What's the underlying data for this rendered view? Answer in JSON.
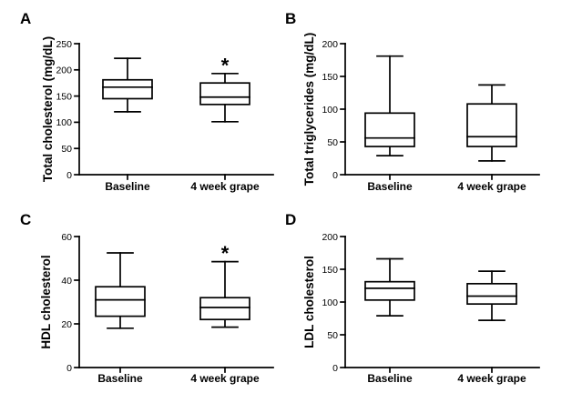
{
  "chart_data": [
    {
      "type": "boxplot",
      "panel_label": "A",
      "ylabel": "Total cholesterol (mg/dL)",
      "ylim": [
        0,
        250
      ],
      "yticks": [
        0,
        50,
        100,
        150,
        200,
        250
      ],
      "categories": [
        "Baseline",
        "4 week grape"
      ],
      "boxes": [
        {
          "min": 120,
          "q1": 145,
          "median": 167,
          "q3": 181,
          "max": 222,
          "annotation": ""
        },
        {
          "min": 101,
          "q1": 134,
          "median": 148,
          "q3": 175,
          "max": 193,
          "annotation": "*"
        }
      ]
    },
    {
      "type": "boxplot",
      "panel_label": "B",
      "ylabel": "Total triglycerides (mg/dL)",
      "ylim": [
        0,
        200
      ],
      "yticks": [
        0,
        50,
        100,
        150,
        200
      ],
      "categories": [
        "Baseline",
        "4 week grape"
      ],
      "boxes": [
        {
          "min": 29,
          "q1": 43,
          "median": 56,
          "q3": 94,
          "max": 181,
          "annotation": ""
        },
        {
          "min": 21,
          "q1": 43,
          "median": 58,
          "q3": 108,
          "max": 137,
          "annotation": ""
        }
      ]
    },
    {
      "type": "boxplot",
      "panel_label": "C",
      "ylabel": "HDL cholesterol",
      "ylim": [
        0,
        60
      ],
      "yticks": [
        0,
        20,
        40,
        60
      ],
      "categories": [
        "Baseline",
        "4 week grape"
      ],
      "boxes": [
        {
          "min": 18,
          "q1": 23.5,
          "median": 31,
          "q3": 37,
          "max": 52.5,
          "annotation": ""
        },
        {
          "min": 18.5,
          "q1": 22,
          "median": 27.5,
          "q3": 32,
          "max": 48.5,
          "annotation": "*"
        }
      ]
    },
    {
      "type": "boxplot",
      "panel_label": "D",
      "ylabel": "LDL cholesterol",
      "ylim": [
        0,
        200
      ],
      "yticks": [
        0,
        50,
        100,
        150,
        200
      ],
      "categories": [
        "Baseline",
        "4 week grape"
      ],
      "boxes": [
        {
          "min": 79,
          "q1": 103,
          "median": 121,
          "q3": 131,
          "max": 166,
          "annotation": ""
        },
        {
          "min": 72,
          "q1": 97,
          "median": 109,
          "q3": 128,
          "max": 147,
          "annotation": ""
        }
      ]
    }
  ]
}
